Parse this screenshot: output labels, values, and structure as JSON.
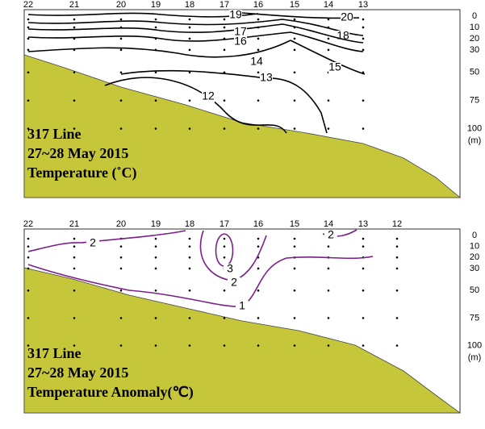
{
  "chart_data": [
    {
      "type": "contour",
      "title_lines": [
        "317 Line",
        "27~28 May 2015",
        "Temperature (˚C)"
      ],
      "stations": [
        "22",
        "21",
        "20",
        "19",
        "18",
        "17",
        "16",
        "15",
        "14",
        "13"
      ],
      "ylim": [
        -6,
        161
      ],
      "yticks": [
        0,
        10,
        20,
        30,
        50,
        75,
        100
      ],
      "y_unit": "(m)",
      "contour_labels": [
        20,
        19,
        18,
        17,
        16,
        14,
        15,
        13,
        12
      ],
      "line_color": "#000000",
      "terrain_color": "#c6c63a"
    },
    {
      "type": "contour",
      "title_lines": [
        "317 Line",
        "27~28 May 2015",
        "Temperature Anomaly(℃)"
      ],
      "stations": [
        "22",
        "21",
        "20",
        "19",
        "18",
        "17",
        "16",
        "15",
        "14",
        "13",
        "12"
      ],
      "ylim": [
        -6,
        161
      ],
      "yticks": [
        0,
        10,
        20,
        30,
        50,
        75,
        100
      ],
      "y_unit": "(m)",
      "contour_labels": [
        2,
        3,
        2,
        1,
        2
      ],
      "line_color": "#7b1f8a",
      "terrain_color": "#c6c63a"
    }
  ]
}
